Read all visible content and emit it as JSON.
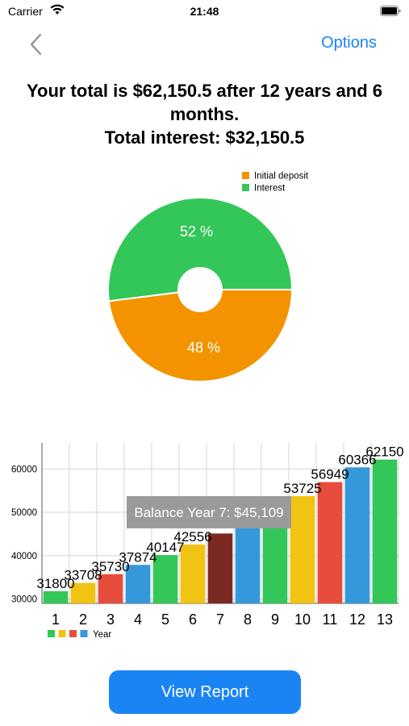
{
  "status_bar": {
    "carrier": "Carrier",
    "time": "21:48"
  },
  "nav": {
    "options_label": "Options"
  },
  "summary": {
    "line1": "Your total is $62,150.5 after 12 years and 6 months.",
    "line2": "Total interest: $32,150.5"
  },
  "report_button": {
    "label": "View Report"
  },
  "colors": {
    "accent": "#1a84f5",
    "orange": "#f39300",
    "green": "#33c659",
    "yellow": "#f1c312",
    "red": "#e74c3c",
    "blue": "#3498db",
    "maroon": "#7b2a22",
    "tooltip_bg": "#9a9a9a"
  },
  "chart_data": [
    {
      "type": "pie",
      "legend": [
        "Initial deposit",
        "Interest"
      ],
      "slices": [
        {
          "name": "Initial deposit",
          "value": 48,
          "label": "48 %",
          "color": "#f39300"
        },
        {
          "name": "Interest",
          "value": 52,
          "label": "52 %",
          "color": "#33c659"
        }
      ],
      "legend_position": "top-right"
    },
    {
      "type": "bar",
      "categories": [
        "1",
        "2",
        "3",
        "4",
        "5",
        "6",
        "7",
        "8",
        "9",
        "10",
        "11",
        "12",
        "13"
      ],
      "values": [
        31800,
        33708,
        35730,
        37874,
        40147,
        42556,
        45109,
        47816,
        50685,
        53725,
        56949,
        60366,
        62150
      ],
      "value_labels": [
        "31800",
        "33708",
        "35730",
        "37874",
        "40147",
        "42556",
        "",
        "",
        "",
        "53725",
        "56949",
        "60366",
        "62150"
      ],
      "bar_colors": [
        "#33c659",
        "#f1c312",
        "#e74c3c",
        "#3498db",
        "#33c659",
        "#f1c312",
        "#7b2a22",
        "#3498db",
        "#33c659",
        "#f1c312",
        "#e74c3c",
        "#3498db",
        "#33c659"
      ],
      "yticks": [
        "30000",
        "40000",
        "50000",
        "60000"
      ],
      "ytick_values": [
        30000,
        40000,
        50000,
        60000
      ],
      "ylim": [
        29000,
        66000
      ],
      "legend_label": "Year",
      "legend_colors": [
        "#33c659",
        "#f1c312",
        "#e74c3c",
        "#3498db"
      ],
      "grid": true,
      "tooltip": "Balance Year 7: $45,109",
      "highlighted_index": 6
    }
  ]
}
